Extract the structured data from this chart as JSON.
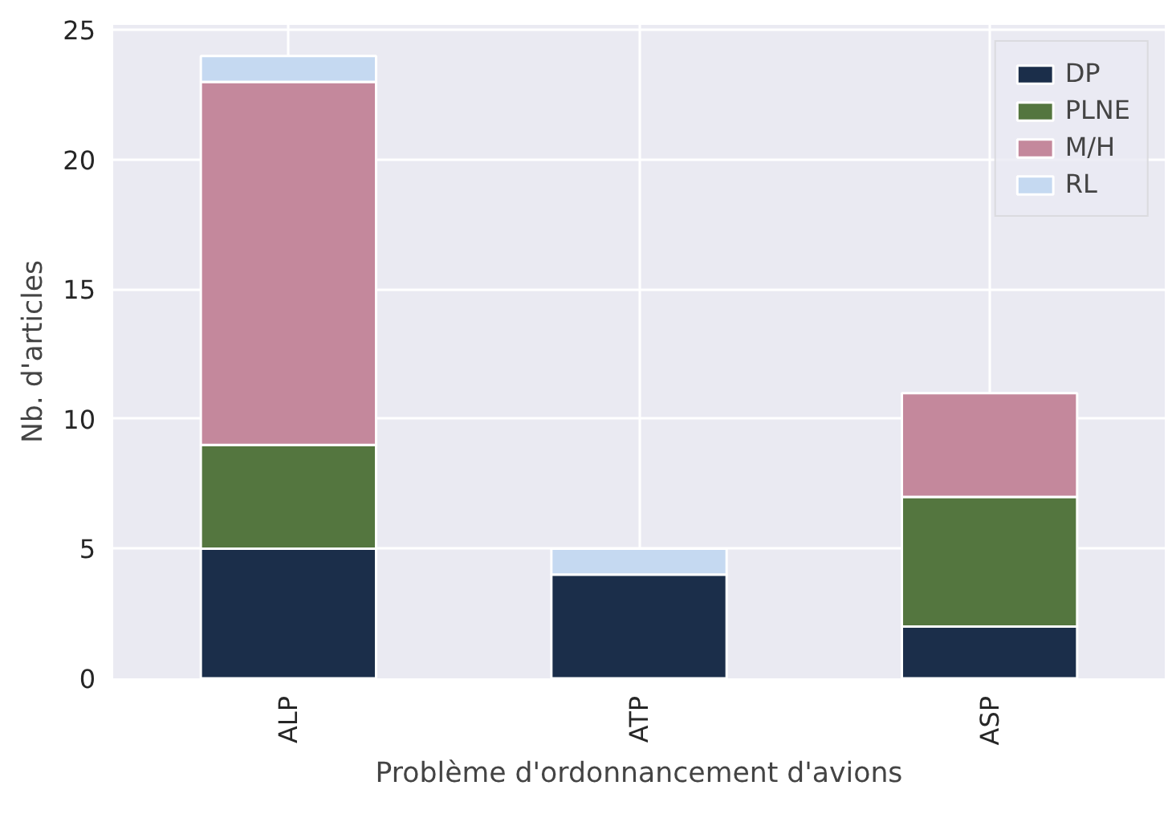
{
  "chart_data": {
    "type": "bar",
    "stacked": true,
    "xlabel": "Problème d'ordonnancement d'avions",
    "ylabel": "Nb. d'articles",
    "categories": [
      "ALP",
      "ATP",
      "ASP"
    ],
    "series": [
      {
        "name": "DP",
        "color": "#1b2e4a",
        "values": [
          5,
          4,
          2
        ]
      },
      {
        "name": "PLNE",
        "color": "#54763f",
        "values": [
          4,
          0,
          5
        ]
      },
      {
        "name": "M/H",
        "color": "#c4889c",
        "values": [
          14,
          0,
          4
        ]
      },
      {
        "name": "RL",
        "color": "#c5d9f1",
        "values": [
          1,
          1,
          0
        ]
      }
    ],
    "ylim": [
      0,
      25.2
    ],
    "yticks": [
      0,
      5,
      10,
      15,
      20,
      25
    ],
    "grid": true,
    "legend": "top right"
  }
}
